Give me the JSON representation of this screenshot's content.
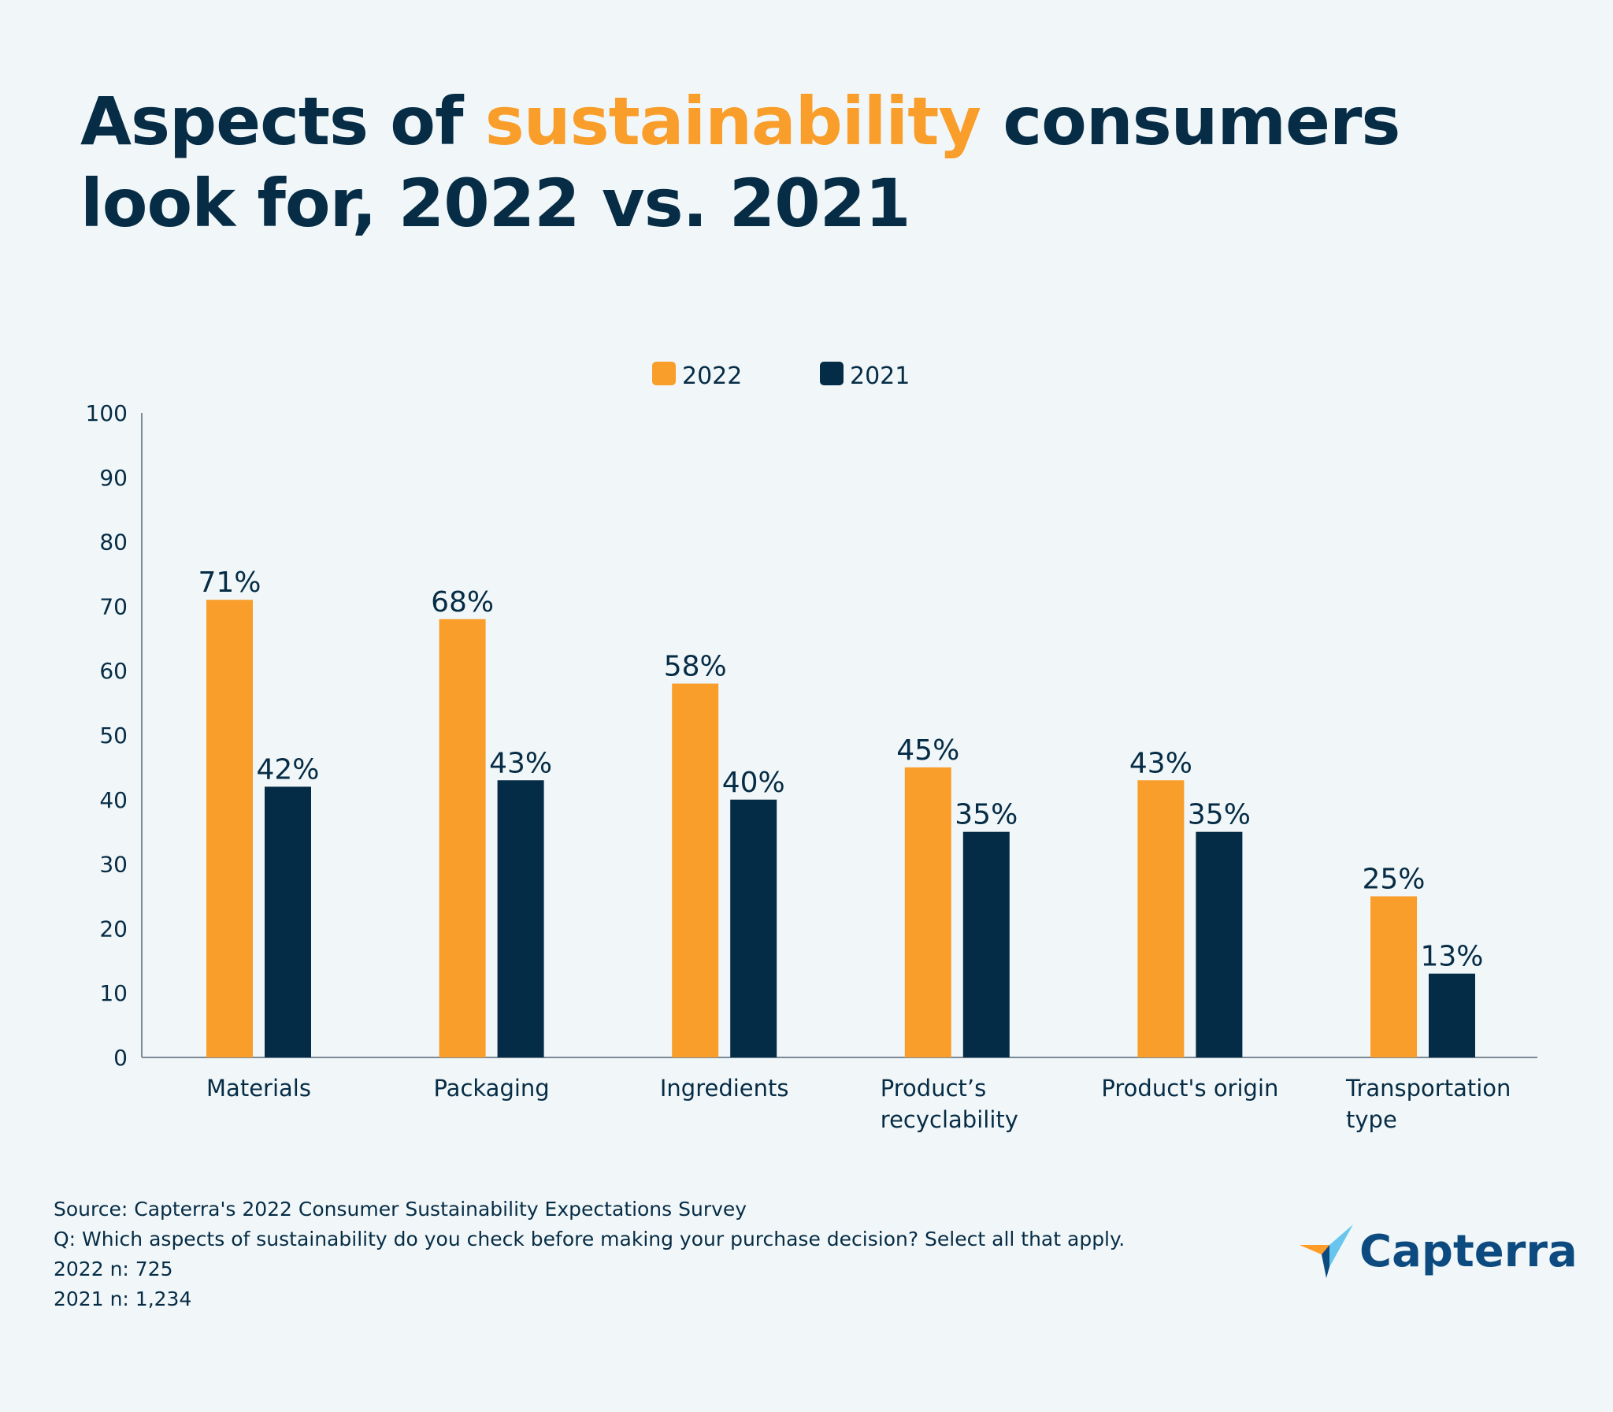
{
  "title": {
    "part1": "Aspects of ",
    "highlight": "sustainability",
    "part2": " consumers look for, 2022 vs. 2021"
  },
  "colors": {
    "series_2022": "#f99d2b",
    "series_2021": "#052c46",
    "axis": "#7c8a96",
    "background": "#f1f7f8"
  },
  "chart_data": {
    "type": "bar",
    "categories": [
      "Materials",
      "Packaging",
      "Ingredients",
      "Product’s\nrecyclability",
      "Product's origin",
      "Transportation\ntype"
    ],
    "series": [
      {
        "name": "2022",
        "values": [
          71,
          68,
          58,
          45,
          43,
          25
        ],
        "labels": [
          "71%",
          "68%",
          "58%",
          "45%",
          "43%",
          "25%"
        ]
      },
      {
        "name": "2021",
        "values": [
          42,
          43,
          40,
          35,
          35,
          13
        ],
        "labels": [
          "42%",
          "43%",
          "40%",
          "35%",
          "35%",
          "13%"
        ]
      }
    ],
    "yticks": [
      0,
      10,
      20,
      30,
      40,
      50,
      60,
      70,
      80,
      90,
      100
    ],
    "ylim": [
      0,
      100
    ],
    "legend": "top-center",
    "grid": false
  },
  "notes": {
    "source": "Source: Capterra's 2022 Consumer Sustainability Expectations Survey",
    "question": "Q: Which aspects of sustainability do you check before making your purchase decision? Select all that apply.",
    "n_2022": "2022 n: 725",
    "n_2021": "2021 n: 1,234"
  },
  "logo": {
    "text": "Capterra",
    "icon": "capterra-arrow-icon"
  }
}
